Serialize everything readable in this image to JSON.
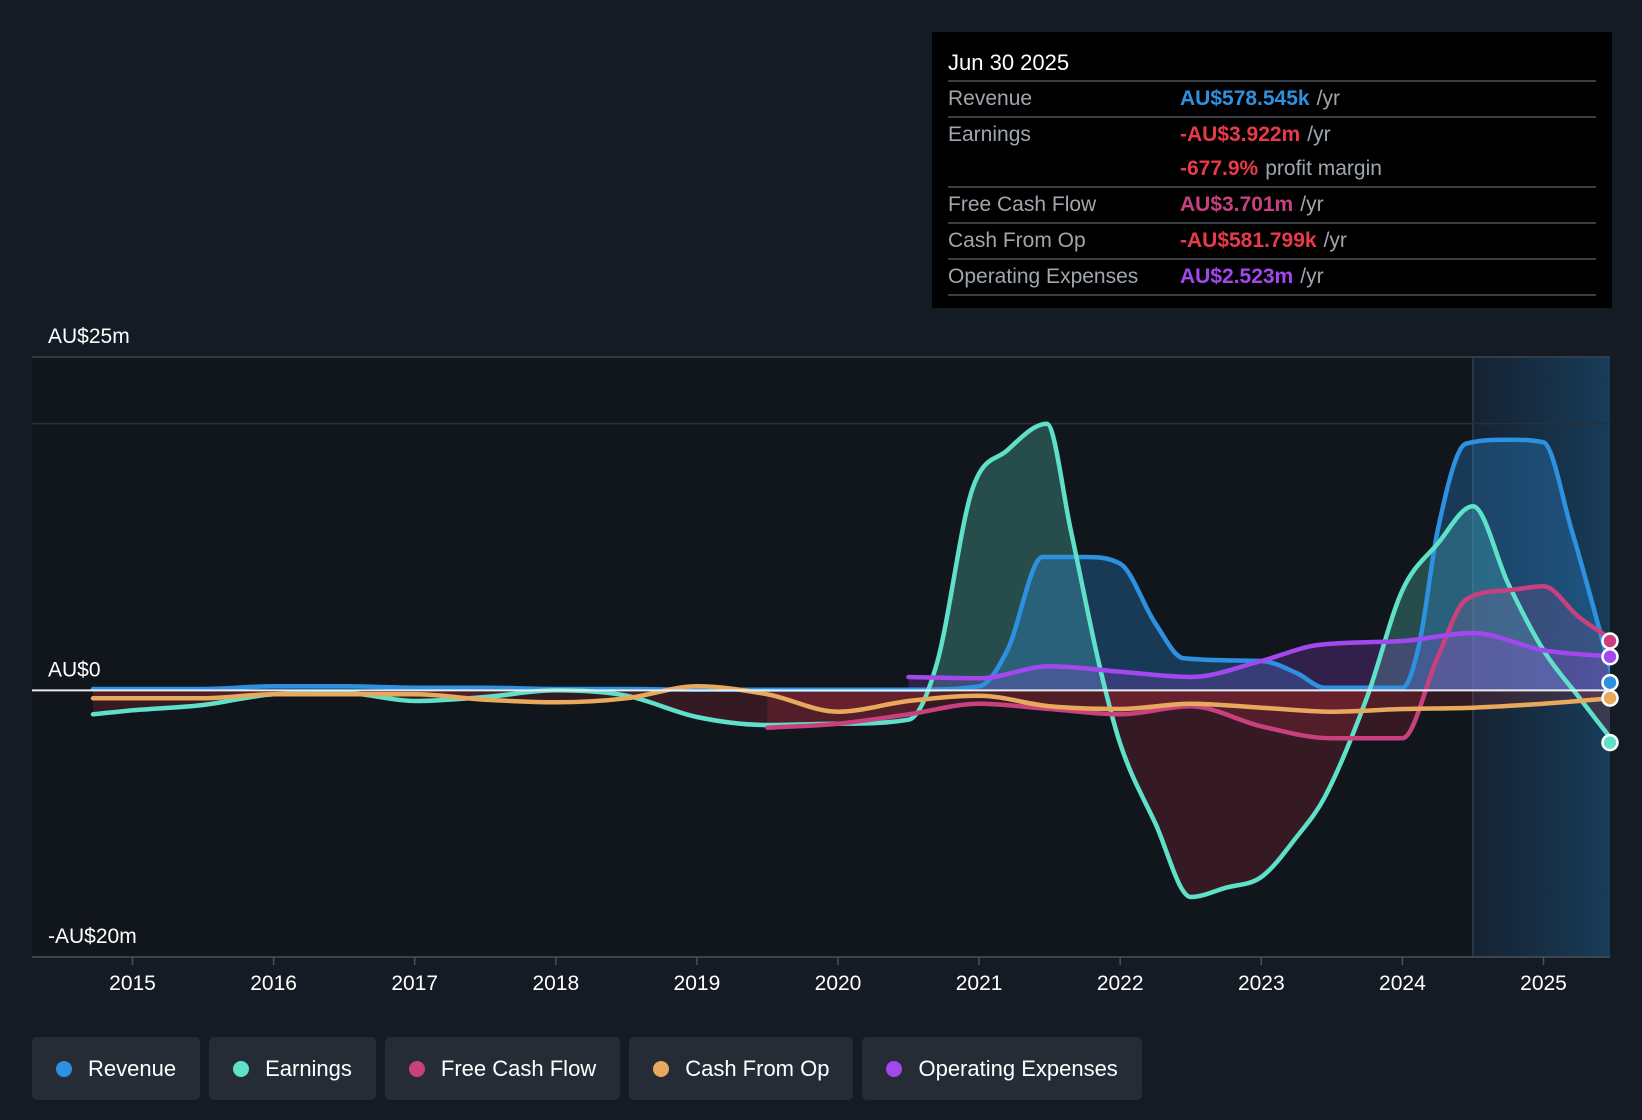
{
  "colors": {
    "background": "#151b24",
    "revenue": "#2d91e0",
    "earnings": "#5fe0c8",
    "free_cash_flow": "#c8417e",
    "cash_from_op": "#e8a95c",
    "operating_expenses": "#a348ee",
    "negative": "#e83a4a"
  },
  "tooltip": {
    "date": "Jun 30 2025",
    "rows": [
      {
        "label": "Revenue",
        "value": "AU$578.545k",
        "unit": "/yr",
        "color": "#2d91e0"
      },
      {
        "label": "Earnings",
        "value": "-AU$3.922m",
        "unit": "/yr",
        "color": "#e83a4a"
      },
      {
        "label": "",
        "value": "-677.9%",
        "unit": "profit margin",
        "color": "#e83a4a"
      },
      {
        "label": "Free Cash Flow",
        "value": "AU$3.701m",
        "unit": "/yr",
        "color": "#c8417e"
      },
      {
        "label": "Cash From Op",
        "value": "-AU$581.799k",
        "unit": "/yr",
        "color": "#e83a4a"
      },
      {
        "label": "Operating Expenses",
        "value": "AU$2.523m",
        "unit": "/yr",
        "color": "#a348ee"
      }
    ]
  },
  "legend": [
    {
      "label": "Revenue",
      "icon": "dot-icon",
      "color": "#2d91e0"
    },
    {
      "label": "Earnings",
      "icon": "dot-icon",
      "color": "#5fe0c8"
    },
    {
      "label": "Free Cash Flow",
      "icon": "dot-icon",
      "color": "#c8417e"
    },
    {
      "label": "Cash From Op",
      "icon": "dot-icon",
      "color": "#e8a95c"
    },
    {
      "label": "Operating Expenses",
      "icon": "dot-icon",
      "color": "#a348ee"
    }
  ],
  "chart_data": {
    "type": "area",
    "title": "",
    "xlabel": "",
    "ylabel": "",
    "ylim": [
      -20,
      25
    ],
    "xlim": [
      2014.7,
      2025.5
    ],
    "y_axis_labels": [
      {
        "value": 25,
        "label": "AU$25m"
      },
      {
        "value": 0,
        "label": "AU$0"
      },
      {
        "value": -20,
        "label": "-AU$20m"
      }
    ],
    "x_ticks": [
      2015,
      2016,
      2017,
      2018,
      2019,
      2020,
      2021,
      2022,
      2023,
      2024,
      2025
    ],
    "x_tick_labels": [
      "2015",
      "2016",
      "2017",
      "2018",
      "2019",
      "2020",
      "2021",
      "2022",
      "2023",
      "2024",
      "2025"
    ],
    "forecast_start": 2024.5,
    "unit": "AU$m",
    "series": [
      {
        "name": "Revenue",
        "key": "revenue",
        "points": [
          [
            2014.72,
            0.1
          ],
          [
            2015.5,
            0.1
          ],
          [
            2016.0,
            0.3
          ],
          [
            2016.5,
            0.3
          ],
          [
            2017.0,
            0.2
          ],
          [
            2017.5,
            0.2
          ],
          [
            2018.0,
            0.1
          ],
          [
            2018.5,
            0.1
          ],
          [
            2019.0,
            0.05
          ],
          [
            2019.5,
            0.05
          ],
          [
            2020.0,
            0.05
          ],
          [
            2020.5,
            0.05
          ],
          [
            2021.0,
            0.3
          ],
          [
            2021.2,
            3.0
          ],
          [
            2021.45,
            10.0
          ],
          [
            2021.75,
            10.0
          ],
          [
            2022.0,
            9.5
          ],
          [
            2022.25,
            5.0
          ],
          [
            2022.45,
            2.4
          ],
          [
            2023.0,
            2.2
          ],
          [
            2023.25,
            1.3
          ],
          [
            2023.45,
            0.2
          ],
          [
            2024.0,
            0.2
          ],
          [
            2024.12,
            3.5
          ],
          [
            2024.25,
            12.0
          ],
          [
            2024.45,
            18.5
          ],
          [
            2024.75,
            18.8
          ],
          [
            2025.0,
            18.6
          ],
          [
            2025.2,
            12.0
          ],
          [
            2025.5,
            0.58
          ]
        ]
      },
      {
        "name": "Earnings",
        "key": "earnings",
        "points": [
          [
            2014.72,
            -1.8
          ],
          [
            2015.0,
            -1.5
          ],
          [
            2015.5,
            -1.1
          ],
          [
            2016.0,
            -0.3
          ],
          [
            2016.5,
            -0.2
          ],
          [
            2017.0,
            -0.8
          ],
          [
            2017.5,
            -0.5
          ],
          [
            2018.0,
            0.0
          ],
          [
            2018.5,
            -0.4
          ],
          [
            2019.0,
            -2.0
          ],
          [
            2019.5,
            -2.6
          ],
          [
            2020.0,
            -2.5
          ],
          [
            2020.5,
            -2.2
          ],
          [
            2020.7,
            2.0
          ],
          [
            2020.95,
            15.0
          ],
          [
            2021.2,
            18.0
          ],
          [
            2021.48,
            20.0
          ],
          [
            2021.65,
            12.0
          ],
          [
            2021.85,
            2.0
          ],
          [
            2022.0,
            -4.0
          ],
          [
            2022.25,
            -10.0
          ],
          [
            2022.5,
            -15.5
          ],
          [
            2022.75,
            -14.8
          ],
          [
            2023.0,
            -14.0
          ],
          [
            2023.25,
            -11.0
          ],
          [
            2023.45,
            -8.0
          ],
          [
            2023.75,
            -0.5
          ],
          [
            2024.0,
            7.5
          ],
          [
            2024.25,
            11.0
          ],
          [
            2024.5,
            13.8
          ],
          [
            2024.75,
            8.0
          ],
          [
            2025.0,
            3.0
          ],
          [
            2025.25,
            -0.5
          ],
          [
            2025.5,
            -3.92
          ]
        ]
      },
      {
        "name": "Free Cash Flow",
        "key": "free_cash_flow",
        "points": [
          [
            2019.5,
            -2.8
          ],
          [
            2020.0,
            -2.5
          ],
          [
            2020.5,
            -1.8
          ],
          [
            2021.0,
            -1.0
          ],
          [
            2021.5,
            -1.4
          ],
          [
            2022.0,
            -1.8
          ],
          [
            2022.5,
            -1.2
          ],
          [
            2023.0,
            -2.7
          ],
          [
            2023.5,
            -3.6
          ],
          [
            2024.0,
            -3.6
          ],
          [
            2024.25,
            2.5
          ],
          [
            2024.45,
            6.8
          ],
          [
            2024.75,
            7.5
          ],
          [
            2025.0,
            7.8
          ],
          [
            2025.25,
            5.5
          ],
          [
            2025.5,
            3.7
          ]
        ]
      },
      {
        "name": "Cash From Op",
        "key": "cash_from_op",
        "points": [
          [
            2014.72,
            -0.6
          ],
          [
            2015.5,
            -0.6
          ],
          [
            2016.0,
            -0.3
          ],
          [
            2016.5,
            -0.3
          ],
          [
            2017.0,
            -0.3
          ],
          [
            2017.5,
            -0.7
          ],
          [
            2018.0,
            -0.9
          ],
          [
            2018.5,
            -0.6
          ],
          [
            2019.0,
            0.3
          ],
          [
            2019.5,
            -0.3
          ],
          [
            2020.0,
            -1.6
          ],
          [
            2020.5,
            -0.8
          ],
          [
            2021.0,
            -0.4
          ],
          [
            2021.5,
            -1.2
          ],
          [
            2022.0,
            -1.4
          ],
          [
            2022.5,
            -1.0
          ],
          [
            2023.0,
            -1.3
          ],
          [
            2023.5,
            -1.6
          ],
          [
            2024.0,
            -1.4
          ],
          [
            2024.5,
            -1.3
          ],
          [
            2025.0,
            -1.0
          ],
          [
            2025.5,
            -0.58
          ]
        ]
      },
      {
        "name": "Operating Expenses",
        "key": "operating_expenses",
        "points": [
          [
            2020.5,
            1.0
          ],
          [
            2021.0,
            0.9
          ],
          [
            2021.5,
            1.8
          ],
          [
            2022.0,
            1.4
          ],
          [
            2022.5,
            1.0
          ],
          [
            2023.0,
            2.2
          ],
          [
            2023.4,
            3.4
          ],
          [
            2024.0,
            3.7
          ],
          [
            2024.5,
            4.3
          ],
          [
            2025.0,
            3.0
          ],
          [
            2025.5,
            2.52
          ]
        ]
      }
    ]
  }
}
